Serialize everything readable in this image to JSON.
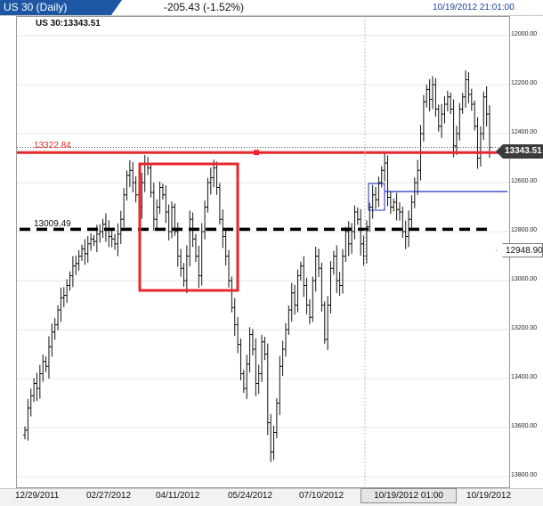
{
  "header": {
    "symbol_title": "US 30 (Daily)",
    "change": "-205.43 (-1.52%)",
    "datetime": "10/19/2012 21:01:00"
  },
  "pane_label": "US 30:13343.51",
  "price_tag": "13343.51",
  "level_tag": "12948.90",
  "colors": {
    "resistance": "#e8272c",
    "support": "#000000",
    "trend": "#1f2fb5",
    "header": "#1d57a4"
  },
  "lines": {
    "resistance_label": "13322.84",
    "support_label": "13009.49"
  },
  "x_axis": {
    "labels": [
      "12/29/2011",
      "02/27/2012",
      "04/11/2012",
      "05/24/2012",
      "07/10/2012",
      "10/19/2012"
    ],
    "cursor_label": "10/19/2012 01:00"
  },
  "y_axis": {
    "ticks": [
      "13800.00",
      "13600.00",
      "13400.00",
      "13200.00",
      "13000.00",
      "12800.00",
      "12600.00",
      "12400.00",
      "12200.00",
      "12000.00"
    ]
  },
  "chart_data": {
    "type": "ohlc",
    "title": "US 30 (Daily)",
    "ylim": [
      11990,
      13830
    ],
    "y_ticks": [
      12000,
      12200,
      12400,
      12600,
      12800,
      13000,
      13200,
      13400,
      13600,
      13800
    ],
    "horizontal_levels": [
      {
        "label": "13322.84",
        "value": 13322.84,
        "style": "solid-red"
      },
      {
        "label": "13009.49",
        "value": 13009.49,
        "style": "dashed-black"
      }
    ],
    "closes": [
      12190,
      12280,
      12330,
      12380,
      12360,
      12420,
      12470,
      12450,
      12530,
      12590,
      12620,
      12680,
      12730,
      12740,
      12780,
      12820,
      12860,
      12870,
      12900,
      12930,
      12910,
      12950,
      12970,
      12960,
      12990,
      13000,
      13030,
      13010,
      12980,
      12970,
      12950,
      12990,
      13050,
      13150,
      13230,
      13250,
      13200,
      13150,
      13100,
      13200,
      13280,
      13260,
      13160,
      13050,
      13100,
      13180,
      13150,
      13080,
      13000,
      13100,
      13000,
      12900,
      12850,
      12800,
      12900,
      13050,
      12970,
      12900,
      12820,
      13000,
      13100,
      13200,
      13220,
      13260,
      13180,
      13050,
      12980,
      12900,
      12800,
      12690,
      12620,
      12540,
      12420,
      12360,
      12460,
      12580,
      12520,
      12380,
      12420,
      12550,
      12500,
      12220,
      12100,
      12180,
      12300,
      12450,
      12520,
      12600,
      12680,
      12750,
      12700,
      12820,
      12860,
      12780,
      12700,
      12650,
      12800,
      12900,
      12850,
      12700,
      12560,
      12700,
      12850,
      12900,
      12800,
      12780,
      12900,
      13000,
      12950,
      13000,
      13080,
      13050,
      12950,
      12900,
      13020,
      13100,
      13150,
      13130,
      13200,
      13250,
      13280,
      13140,
      13100,
      13120,
      13090,
      13080,
      13000,
      12980,
      13050,
      13120,
      13200,
      13250,
      13400,
      13530,
      13580,
      13540,
      13600,
      13500,
      13430,
      13480,
      13520,
      13550,
      13500,
      13350,
      13400,
      13500,
      13550,
      13620,
      13560,
      13520,
      13430,
      13300,
      13400,
      13550,
      13480,
      13343.51
    ]
  }
}
